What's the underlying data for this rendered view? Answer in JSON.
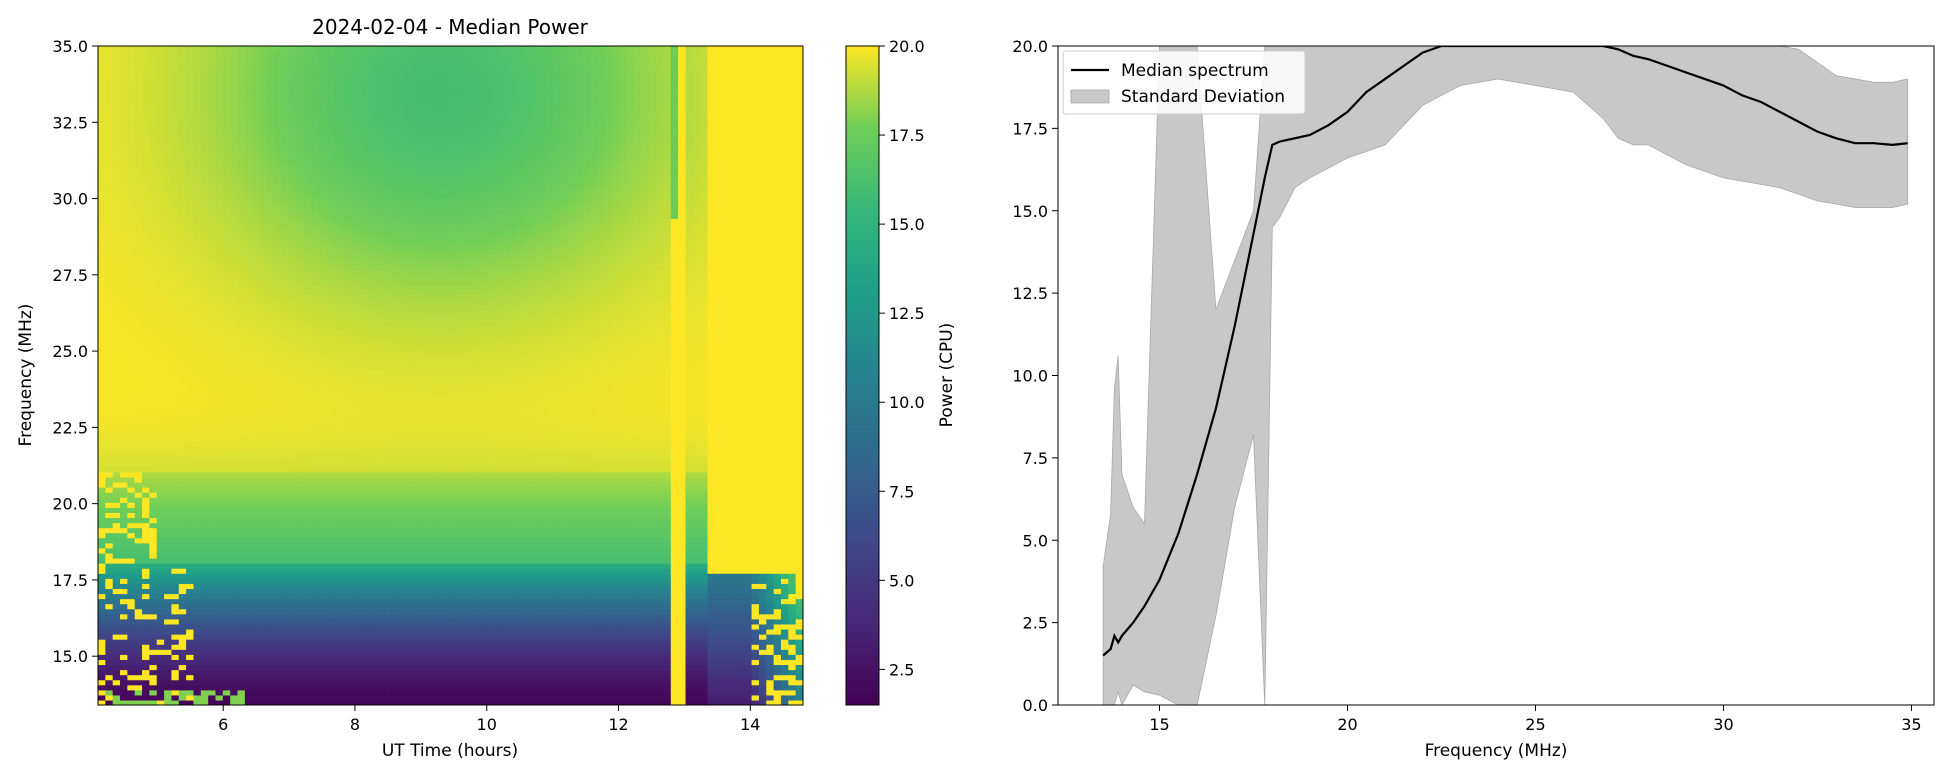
{
  "chart_data": [
    {
      "type": "heatmap",
      "title": "2024-02-04 - Median Power",
      "xlabel": "UT Time (hours)",
      "ylabel": "Frequency (MHz)",
      "xlim": [
        4.1,
        14.8
      ],
      "ylim": [
        13.4,
        35.0
      ],
      "xticks": [
        6,
        8,
        10,
        12,
        14
      ],
      "yticks": [
        15.0,
        17.5,
        20.0,
        22.5,
        25.0,
        27.5,
        30.0,
        32.5,
        35.0
      ],
      "colormap": "viridis",
      "colorbar": {
        "label": "Power (CPU)",
        "range": [
          1.5,
          20.0
        ],
        "ticks": [
          2.5,
          5.0,
          7.5,
          10.0,
          12.5,
          15.0,
          17.5,
          20.0
        ]
      },
      "features": {
        "saturated_column_time": 12.95,
        "saturated_right_time": 13.3,
        "green_center": {
          "time": 9.3,
          "freq": 33.5,
          "value": 16.0
        },
        "transition_freq": 18.0
      }
    },
    {
      "type": "line",
      "title": "",
      "xlabel": "Frequency (MHz)",
      "ylabel": "",
      "xlim": [
        12.3,
        35.6
      ],
      "ylim": [
        0.0,
        20.0
      ],
      "xticks": [
        15,
        20,
        25,
        30,
        35
      ],
      "yticks": [
        0.0,
        2.5,
        5.0,
        7.5,
        10.0,
        12.5,
        15.0,
        17.5,
        20.0
      ],
      "legend_position": "top-left",
      "series": [
        {
          "name": "Median spectrum",
          "color": "#000000",
          "x": [
            13.5,
            13.7,
            13.8,
            13.9,
            14.0,
            14.3,
            14.6,
            15.0,
            15.5,
            16.0,
            16.5,
            17.0,
            17.5,
            17.8,
            18.0,
            18.2,
            18.6,
            19.0,
            19.5,
            20.0,
            20.5,
            21.0,
            21.5,
            22.0,
            22.5,
            23.0,
            24.0,
            25.0,
            26.0,
            26.8,
            27.2,
            27.6,
            28.0,
            28.5,
            29.0,
            29.5,
            30.0,
            30.5,
            31.0,
            31.5,
            32.0,
            32.5,
            33.0,
            33.5,
            34.0,
            34.5,
            34.9
          ],
          "y": [
            1.5,
            1.7,
            2.1,
            1.9,
            2.1,
            2.5,
            3.0,
            3.8,
            5.2,
            7.0,
            9.0,
            11.5,
            14.3,
            16.0,
            17.0,
            17.1,
            17.2,
            17.3,
            17.6,
            18.0,
            18.6,
            19.0,
            19.4,
            19.8,
            20.0,
            20.0,
            20.0,
            20.0,
            20.0,
            20.0,
            19.9,
            19.7,
            19.6,
            19.4,
            19.2,
            19.0,
            18.8,
            18.5,
            18.3,
            18.0,
            17.7,
            17.4,
            17.2,
            17.05,
            17.05,
            17.0,
            17.05
          ]
        },
        {
          "name": "Standard Deviation",
          "color": "#c8c8c8",
          "upper": [
            4.2,
            5.8,
            9.6,
            10.6,
            7.0,
            6.0,
            5.5,
            20.0,
            20.0,
            20.0,
            12.0,
            13.5,
            15.0,
            20.0,
            20.0,
            20.0,
            20.0,
            20.0,
            20.0,
            20.0,
            20.0,
            20.0,
            20.0,
            20.0,
            20.0,
            20.0,
            20.0,
            20.0,
            20.0,
            20.0,
            20.0,
            20.0,
            20.0,
            20.0,
            20.0,
            20.0,
            20.0,
            20.0,
            20.0,
            20.0,
            19.9,
            19.5,
            19.1,
            19.0,
            18.9,
            18.9,
            19.0
          ],
          "lower": [
            0.0,
            0.0,
            0.0,
            0.4,
            0.0,
            0.6,
            0.4,
            0.3,
            0.0,
            0.0,
            2.7,
            6.0,
            8.2,
            0.0,
            14.5,
            14.8,
            15.7,
            16.0,
            16.3,
            16.6,
            16.8,
            17.0,
            17.6,
            18.2,
            18.5,
            18.8,
            19.0,
            18.8,
            18.6,
            17.8,
            17.2,
            17.0,
            17.0,
            16.7,
            16.4,
            16.2,
            16.0,
            15.9,
            15.8,
            15.7,
            15.5,
            15.3,
            15.2,
            15.1,
            15.1,
            15.1,
            15.2
          ]
        }
      ]
    }
  ]
}
